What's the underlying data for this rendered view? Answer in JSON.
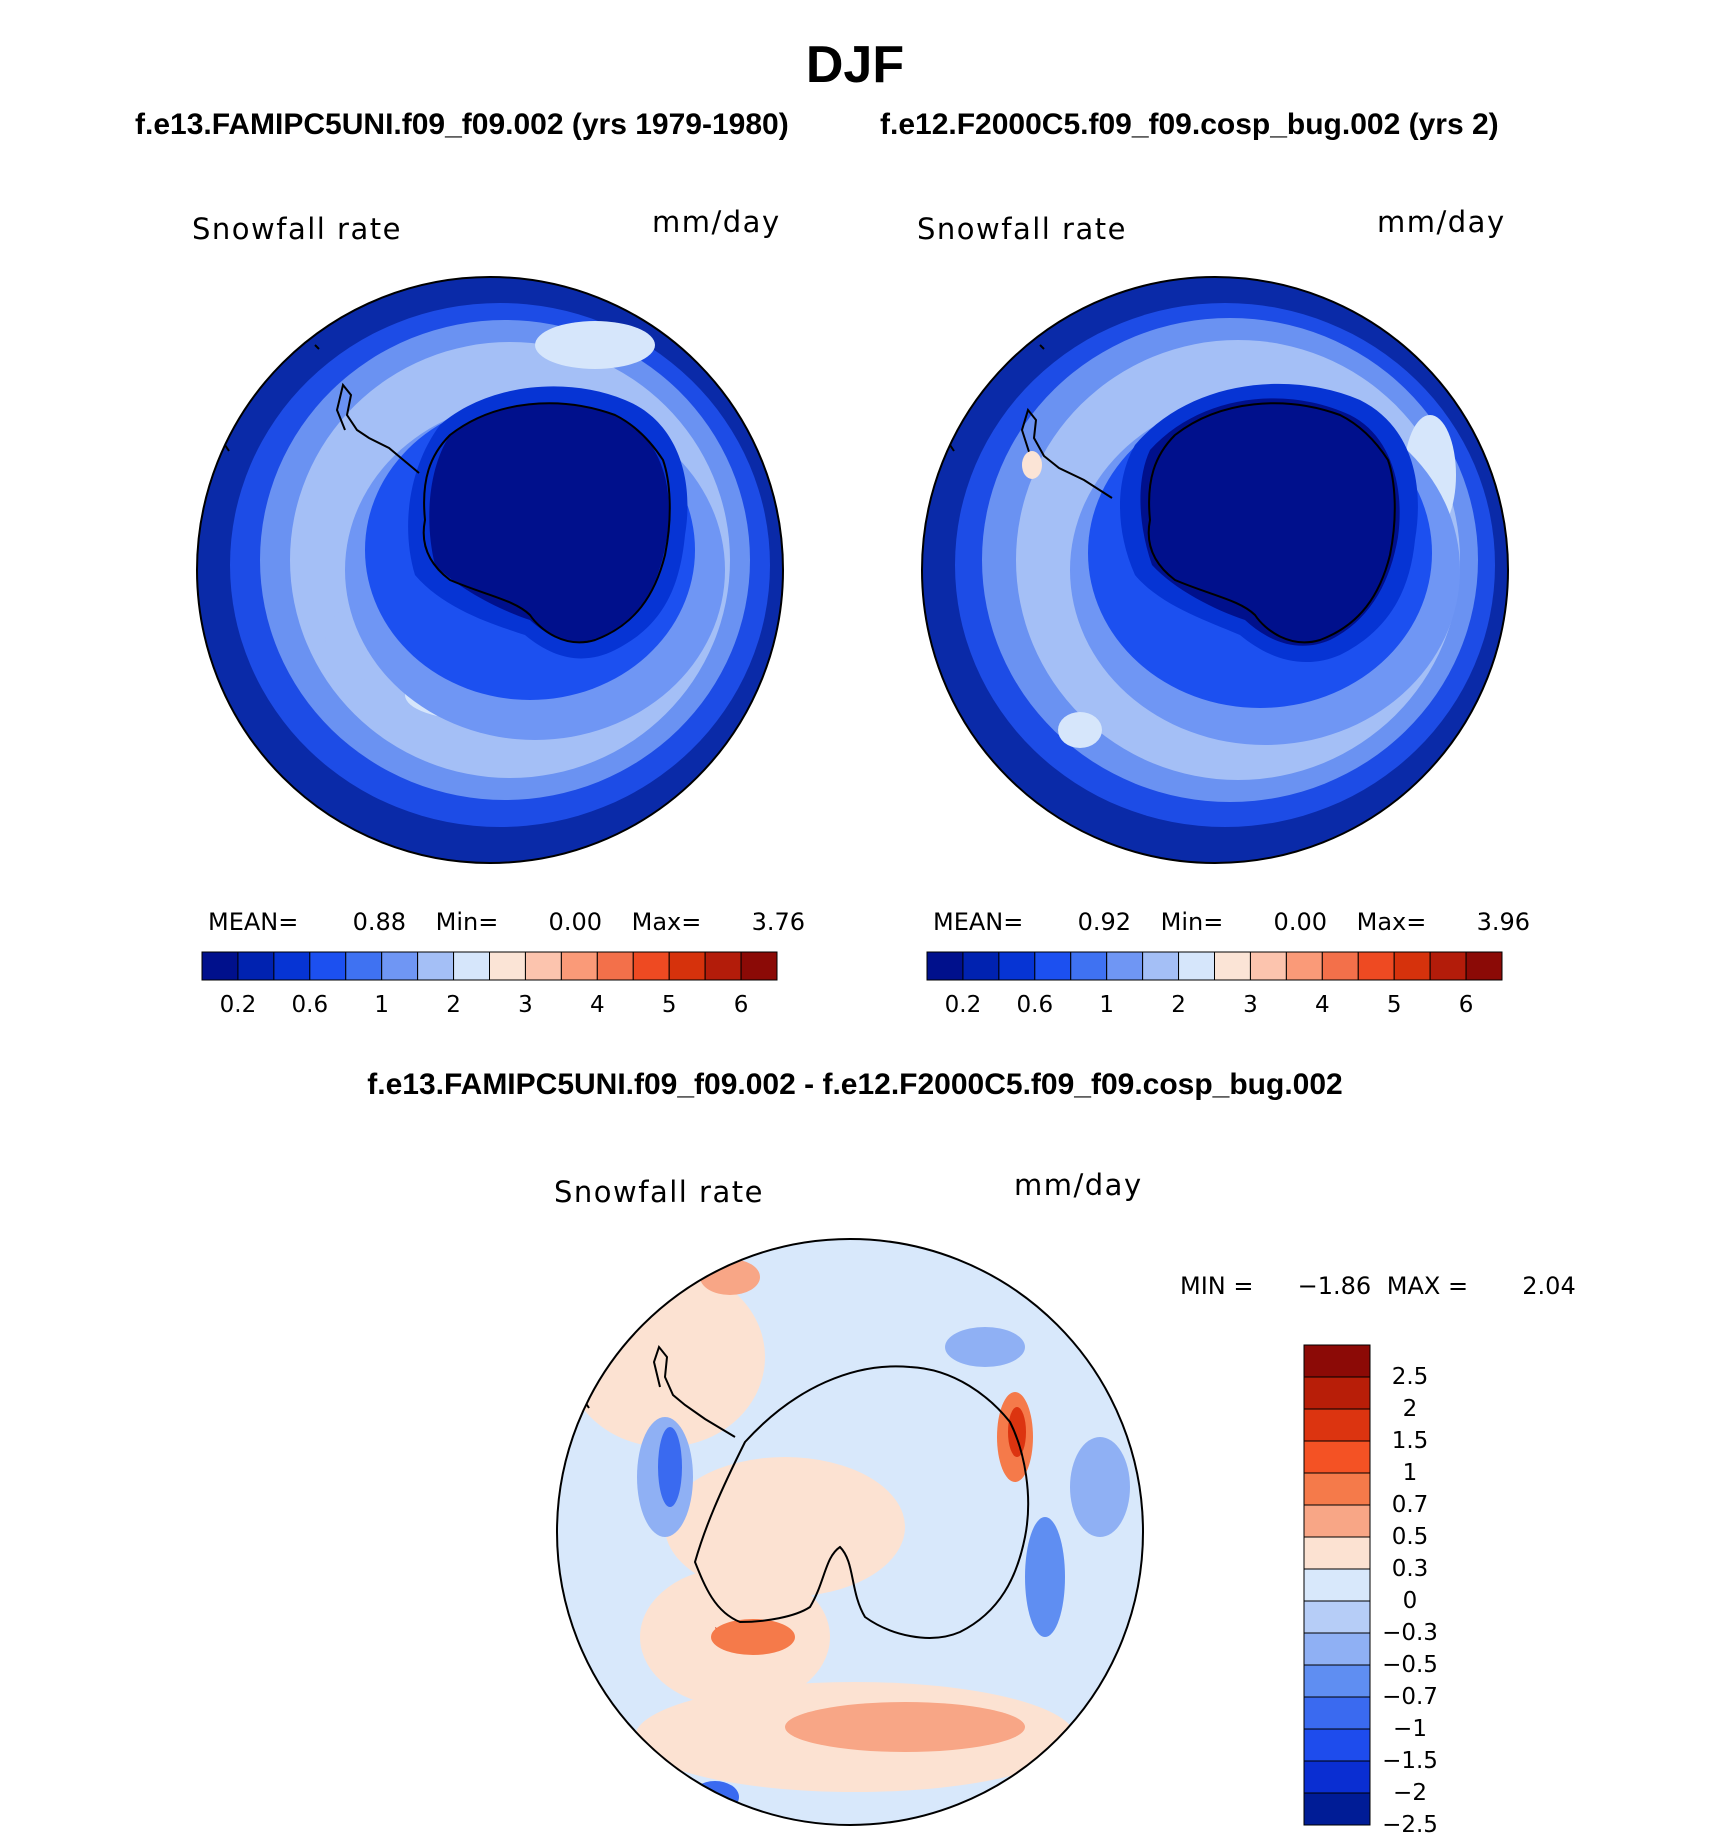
{
  "season": "DJF",
  "panels": [
    {
      "case_title": "f.e13.FAMIPC5UNI.f09_f09.002 (yrs 1979-1980)",
      "variable": "Snowfall rate",
      "units": "mm/day",
      "stats": {
        "mean_label": "MEAN=",
        "mean": "0.88",
        "min_label": "Min=",
        "min": "0.00",
        "max_label": "Max=",
        "max": "3.76"
      }
    },
    {
      "case_title": "f.e12.F2000C5.f09_f09.cosp_bug.002 (yrs 2)",
      "variable": "Snowfall rate",
      "units": "mm/day",
      "stats": {
        "mean_label": "MEAN=",
        "mean": "0.92",
        "min_label": "Min=",
        "min": "0.00",
        "max_label": "Max=",
        "max": "3.96"
      }
    }
  ],
  "colorbar_abs": {
    "colors": [
      "#00108c",
      "#0022b0",
      "#0634d4",
      "#1c50f0",
      "#3f72f2",
      "#6f96f4",
      "#a4bff6",
      "#d6e6fb",
      "#fbe4d6",
      "#fcc4ae",
      "#fa9a78",
      "#f3704a",
      "#ee4a22",
      "#d6320c",
      "#b31c0a",
      "#8b0a06"
    ],
    "tick_labels": [
      "0.2",
      "0.6",
      "1",
      "2",
      "3",
      "4",
      "5",
      "6"
    ]
  },
  "difference": {
    "title": "f.e13.FAMIPC5UNI.f09_f09.002 - f.e12.F2000C5.f09_f09.cosp_bug.002",
    "variable": "Snowfall rate",
    "units": "mm/day",
    "stats": {
      "min_label": "MIN =",
      "min": "−1.86",
      "max_label": "MAX =",
      "max": "2.04"
    },
    "colorbar": {
      "colors": [
        "#8c0a06",
        "#b81e08",
        "#dc3410",
        "#f45224",
        "#f57a4a",
        "#f8a686",
        "#fce2d2",
        "#d8e8fb",
        "#b6cdf7",
        "#8fb0f4",
        "#5f8ef2",
        "#3a6af0",
        "#1e4ced",
        "#0a2ed2",
        "#001c96"
      ],
      "tick_labels": [
        "2.5",
        "2",
        "1.5",
        "1",
        "0.7",
        "0.5",
        "0.3",
        "0",
        "−0.3",
        "−0.5",
        "−0.7",
        "−1",
        "−1.5",
        "−2",
        "−2.5"
      ]
    }
  }
}
